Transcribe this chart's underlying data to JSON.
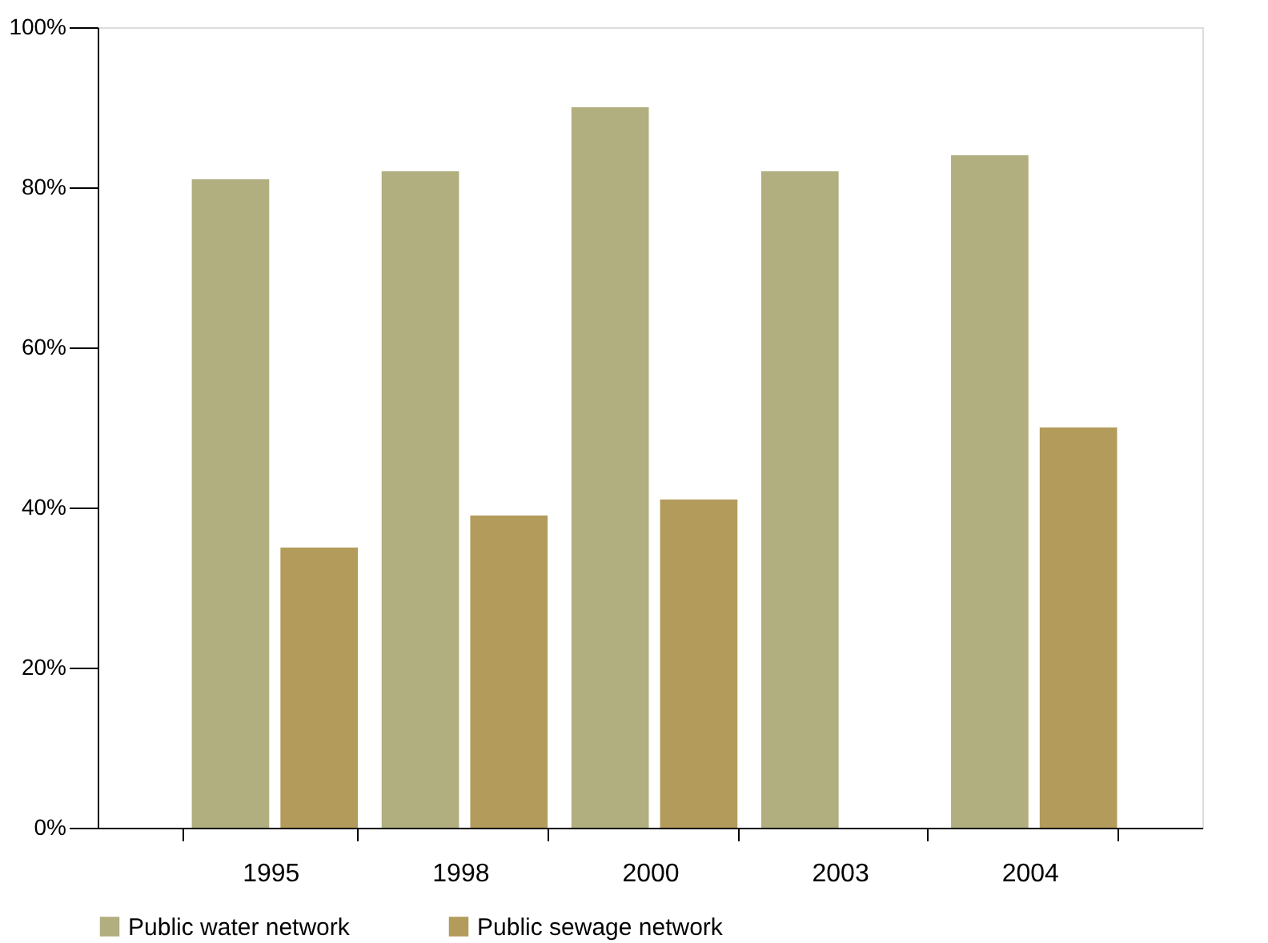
{
  "chart_data": {
    "type": "bar",
    "categories": [
      "1995",
      "1998",
      "2000",
      "2003",
      "2004"
    ],
    "series": [
      {
        "name": "Public water network",
        "color": "#b1ae80",
        "values": [
          81,
          82,
          90,
          82,
          84
        ]
      },
      {
        "name": "Public sewage network",
        "color": "#b39b5c",
        "values": [
          35,
          39,
          41,
          null,
          50
        ]
      }
    ],
    "ylim": [
      0,
      100
    ],
    "yticks": [
      {
        "value": 0,
        "label": "0%"
      },
      {
        "value": 20,
        "label": "20%"
      },
      {
        "value": 40,
        "label": "40%"
      },
      {
        "value": 60,
        "label": "60%"
      },
      {
        "value": 80,
        "label": "80%"
      },
      {
        "value": 100,
        "label": "100%"
      }
    ],
    "legend": "bottom",
    "grid": false
  }
}
